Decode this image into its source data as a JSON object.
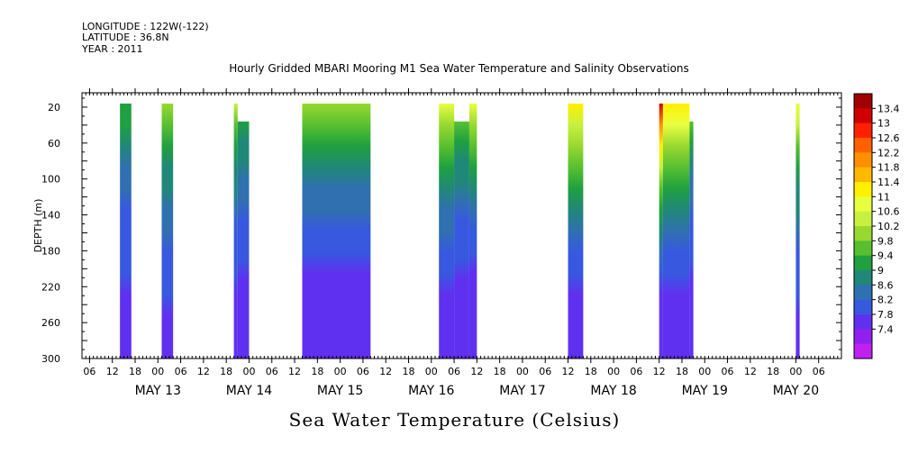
{
  "meta": {
    "longitude": "LONGITUDE : 122W(-122)",
    "latitude": "LATITUDE : 36.8N",
    "year": "YEAR : 2011"
  },
  "chart_data": {
    "type": "heatmap",
    "title": "Hourly Gridded MBARI Mooring M1 Sea Water Temperature and Salinity Observations",
    "colorbar_title": "Sea Water Temperature (Celsius)",
    "ylabel": "DEPTH (m)",
    "ylim": [
      300,
      4
    ],
    "y_ticks": [
      20,
      60,
      100,
      140,
      180,
      220,
      260,
      300
    ],
    "x_start": "2011-05-12T04:00",
    "x_end": "2011-05-20T12:00",
    "x_hour_ticks": [
      {
        "t": "2011-05-12T06:00",
        "label": "06"
      },
      {
        "t": "2011-05-12T12:00",
        "label": "12"
      },
      {
        "t": "2011-05-12T18:00",
        "label": "18"
      },
      {
        "t": "2011-05-13T00:00",
        "label": "00"
      },
      {
        "t": "2011-05-13T06:00",
        "label": "06"
      },
      {
        "t": "2011-05-13T12:00",
        "label": "12"
      },
      {
        "t": "2011-05-13T18:00",
        "label": "18"
      },
      {
        "t": "2011-05-14T00:00",
        "label": "00"
      },
      {
        "t": "2011-05-14T06:00",
        "label": "06"
      },
      {
        "t": "2011-05-14T12:00",
        "label": "12"
      },
      {
        "t": "2011-05-14T18:00",
        "label": "18"
      },
      {
        "t": "2011-05-15T00:00",
        "label": "00"
      },
      {
        "t": "2011-05-15T06:00",
        "label": "06"
      },
      {
        "t": "2011-05-15T12:00",
        "label": "12"
      },
      {
        "t": "2011-05-15T18:00",
        "label": "18"
      },
      {
        "t": "2011-05-16T00:00",
        "label": "00"
      },
      {
        "t": "2011-05-16T06:00",
        "label": "06"
      },
      {
        "t": "2011-05-16T12:00",
        "label": "12"
      },
      {
        "t": "2011-05-16T18:00",
        "label": "18"
      },
      {
        "t": "2011-05-17T00:00",
        "label": "00"
      },
      {
        "t": "2011-05-17T06:00",
        "label": "06"
      },
      {
        "t": "2011-05-17T12:00",
        "label": "12"
      },
      {
        "t": "2011-05-17T18:00",
        "label": "18"
      },
      {
        "t": "2011-05-18T00:00",
        "label": "00"
      },
      {
        "t": "2011-05-18T06:00",
        "label": "06"
      },
      {
        "t": "2011-05-18T12:00",
        "label": "12"
      },
      {
        "t": "2011-05-18T18:00",
        "label": "18"
      },
      {
        "t": "2011-05-19T00:00",
        "label": "00"
      },
      {
        "t": "2011-05-19T06:00",
        "label": "06"
      },
      {
        "t": "2011-05-19T12:00",
        "label": "12"
      },
      {
        "t": "2011-05-19T18:00",
        "label": "18"
      },
      {
        "t": "2011-05-20T00:00",
        "label": "00"
      },
      {
        "t": "2011-05-20T06:00",
        "label": "06"
      }
    ],
    "x_date_labels": [
      {
        "t": "2011-05-13T00:00",
        "label": "MAY 13"
      },
      {
        "t": "2011-05-14T00:00",
        "label": "MAY 14"
      },
      {
        "t": "2011-05-15T00:00",
        "label": "MAY 15"
      },
      {
        "t": "2011-05-16T00:00",
        "label": "MAY 16"
      },
      {
        "t": "2011-05-17T00:00",
        "label": "MAY 17"
      },
      {
        "t": "2011-05-18T00:00",
        "label": "MAY 18"
      },
      {
        "t": "2011-05-19T00:00",
        "label": "MAY 19"
      },
      {
        "t": "2011-05-20T00:00",
        "label": "MAY 20"
      }
    ],
    "colorbar_levels": [
      "13.4",
      "13",
      "12.6",
      "12.2",
      "11.8",
      "11.4",
      "11",
      "10.6",
      "10.2",
      "9.8",
      "9.4",
      "9",
      "8.6",
      "8.2",
      "7.8",
      "7.4"
    ],
    "colorbar_colors": [
      "#a00000",
      "#d00000",
      "#ff2000",
      "#ff6000",
      "#ff9000",
      "#ffb800",
      "#fff000",
      "#e8ff40",
      "#c8f040",
      "#98d830",
      "#58c030",
      "#20a040",
      "#208878",
      "#3070b0",
      "#3858e0",
      "#6030f0",
      "#9020f0",
      "#c020f0"
    ],
    "segments": [
      {
        "start": "2011-05-12T14:00",
        "end": "2011-05-12T17:00",
        "top_depth": 20,
        "surface_temp": 9.3,
        "bottom_temp": 7.7
      },
      {
        "start": "2011-05-13T01:00",
        "end": "2011-05-13T04:00",
        "top_depth": 20,
        "surface_temp": 10.0,
        "bottom_temp": 7.7
      },
      {
        "start": "2011-05-13T20:00",
        "end": "2011-05-13T21:00",
        "top_depth": 20,
        "surface_temp": 10.2,
        "bottom_temp": 7.6
      },
      {
        "start": "2011-05-13T21:00",
        "end": "2011-05-14T00:00",
        "top_depth": 40,
        "surface_temp": 9.2,
        "bottom_temp": 7.6
      },
      {
        "start": "2011-05-14T14:00",
        "end": "2011-05-15T08:00",
        "top_depth": 20,
        "surface_temp": 10.1,
        "bottom_temp": 7.5
      },
      {
        "start": "2011-05-16T02:00",
        "end": "2011-05-16T06:00",
        "top_depth": 20,
        "surface_temp": 10.6,
        "bottom_temp": 7.6
      },
      {
        "start": "2011-05-16T06:00",
        "end": "2011-05-16T10:00",
        "top_depth": 40,
        "surface_temp": 9.5,
        "bottom_temp": 7.6
      },
      {
        "start": "2011-05-16T10:00",
        "end": "2011-05-16T12:00",
        "top_depth": 20,
        "surface_temp": 10.6,
        "bottom_temp": 7.5
      },
      {
        "start": "2011-05-17T12:00",
        "end": "2011-05-17T16:00",
        "top_depth": 20,
        "surface_temp": 11.2,
        "bottom_temp": 7.6
      },
      {
        "start": "2011-05-18T12:00",
        "end": "2011-05-18T13:00",
        "top_depth": 20,
        "surface_temp": 13.0,
        "bottom_temp": 7.5
      },
      {
        "start": "2011-05-18T13:00",
        "end": "2011-05-18T20:00",
        "top_depth": 20,
        "surface_temp": 11.3,
        "bottom_temp": 7.5
      },
      {
        "start": "2011-05-18T20:00",
        "end": "2011-05-18T21:00",
        "top_depth": 40,
        "surface_temp": 9.4,
        "bottom_temp": 7.6
      },
      {
        "start": "2011-05-20T00:00",
        "end": "2011-05-20T01:00",
        "top_depth": 20,
        "surface_temp": 10.8,
        "bottom_temp": 7.7
      }
    ]
  }
}
